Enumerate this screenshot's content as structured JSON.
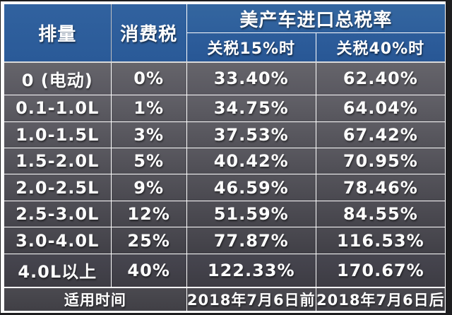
{
  "meta": {
    "colors": {
      "header_blue": "#2e5f9c",
      "row_gray": "#54535a",
      "footer_gray": "#45444a",
      "text_white": "#ffffff",
      "outer_edge_dark": "#1e1e20",
      "frame_white": "#ffffff"
    }
  },
  "header": {
    "displacement": "排量",
    "consumption_tax": "消费税",
    "total_rate_title": "美产车进口总税率",
    "tariff_15": "关税15%时",
    "tariff_40": "关税40%时"
  },
  "rows": [
    {
      "displacement": "0 (电动)",
      "consumption_tax": "0%",
      "rate_15": "33.40%",
      "rate_40": "62.40%"
    },
    {
      "displacement": "0.1-1.0L",
      "consumption_tax": "1%",
      "rate_15": "34.75%",
      "rate_40": "64.04%"
    },
    {
      "displacement": "1.0-1.5L",
      "consumption_tax": "3%",
      "rate_15": "37.53%",
      "rate_40": "67.42%"
    },
    {
      "displacement": "1.5-2.0L",
      "consumption_tax": "5%",
      "rate_15": "40.42%",
      "rate_40": "70.95%"
    },
    {
      "displacement": "2.0-2.5L",
      "consumption_tax": "9%",
      "rate_15": "46.59%",
      "rate_40": "78.46%"
    },
    {
      "displacement": "2.5-3.0L",
      "consumption_tax": "12%",
      "rate_15": "51.59%",
      "rate_40": "84.55%"
    },
    {
      "displacement": "3.0-4.0L",
      "consumption_tax": "25%",
      "rate_15": "77.87%",
      "rate_40": "116.53%"
    },
    {
      "displacement": "4.0L以上",
      "consumption_tax": "40%",
      "rate_15": "122.33%",
      "rate_40": "170.67%"
    }
  ],
  "footer": {
    "label": "适用时间",
    "before": "2018年7月6日前",
    "after": "2018年7月6日后"
  },
  "chart_data": {
    "type": "table",
    "title": "美产车进口总税率",
    "columns": [
      "排量",
      "消费税",
      "美产车进口总税率 关税15%时",
      "美产车进口总税率 关税40%时"
    ],
    "categories": [
      "0 (电动)",
      "0.1-1.0L",
      "1.0-1.5L",
      "1.5-2.0L",
      "2.0-2.5L",
      "2.5-3.0L",
      "3.0-4.0L",
      "4.0L以上"
    ],
    "series": [
      {
        "name": "消费税(%)",
        "values": [
          0,
          1,
          3,
          5,
          9,
          12,
          25,
          40
        ]
      },
      {
        "name": "总税率 关税15%时(%)",
        "values": [
          33.4,
          34.75,
          37.53,
          40.42,
          46.59,
          51.59,
          77.87,
          122.33
        ]
      },
      {
        "name": "总税率 关税40%时(%)",
        "values": [
          62.4,
          64.04,
          67.42,
          70.95,
          78.46,
          84.55,
          116.53,
          170.67
        ]
      }
    ],
    "footnote_row": [
      "适用时间",
      "2018年7月6日前",
      "2018年7月6日后"
    ]
  }
}
